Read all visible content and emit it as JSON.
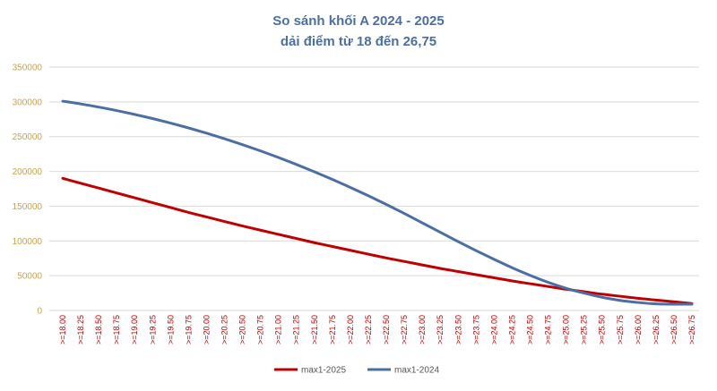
{
  "chart_data": {
    "type": "line",
    "title": "So sánh khối A 2024 - 2025",
    "subtitle": "dải điểm từ 18 đến 26,75",
    "xlabel": "",
    "ylabel": "",
    "ylim": [
      0,
      350000
    ],
    "yticks": [
      "0",
      "50000",
      "100000",
      "150000",
      "200000",
      "250000",
      "300000",
      "350000"
    ],
    "ytick_values": [
      0,
      50000,
      100000,
      150000,
      200000,
      250000,
      300000,
      350000
    ],
    "grid": true,
    "legend_position": "bottom",
    "categories": [
      ">=18.00",
      ">=18.25",
      ">=18.50",
      ">=18.75",
      ">=19.00",
      ">=19.25",
      ">=19.50",
      ">=19.75",
      ">=20.00",
      ">=20.25",
      ">=20.50",
      ">=20.75",
      ">=21.00",
      ">=21.25",
      ">=21.50",
      ">=21.75",
      ">=22.00",
      ">=22.25",
      ">=22.50",
      ">=22.75",
      ">=23.00",
      ">=23.25",
      ">=23.50",
      ">=23.75",
      ">=24.00",
      ">=24.25",
      ">=24.50",
      ">=24.75",
      ">=25.00",
      ">=25.25",
      ">=25.50",
      ">=25.75",
      ">=26.00",
      ">=26.25",
      ">=26.50",
      ">=26.75"
    ],
    "series": [
      {
        "name": "max1-2025",
        "color": "#c00000",
        "values": [
          190000,
          183000,
          176000,
          169000,
          162000,
          155000,
          148000,
          141000,
          134500,
          128000,
          121500,
          115500,
          109500,
          103500,
          97500,
          92000,
          86500,
          81000,
          75500,
          70500,
          65500,
          60500,
          56000,
          51500,
          47000,
          42500,
          38500,
          34500,
          30500,
          27000,
          23500,
          20500,
          17500,
          15000,
          12500,
          10000
        ]
      },
      {
        "name": "max1-2024",
        "color": "#4a6fa5",
        "values": [
          301000,
          297000,
          292500,
          287500,
          282000,
          276000,
          269500,
          262500,
          255000,
          247000,
          238500,
          229500,
          220000,
          210000,
          199500,
          188500,
          177000,
          165000,
          152500,
          139500,
          126000,
          112500,
          99000,
          86000,
          73500,
          61500,
          50500,
          40500,
          32000,
          25000,
          19000,
          14500,
          11500,
          9500,
          9000,
          9000
        ]
      }
    ],
    "colors": {
      "title": "#4a6fa5",
      "ytick": "#c8a24a",
      "xtick": "#c00000",
      "grid": "#d9d9d9"
    }
  }
}
